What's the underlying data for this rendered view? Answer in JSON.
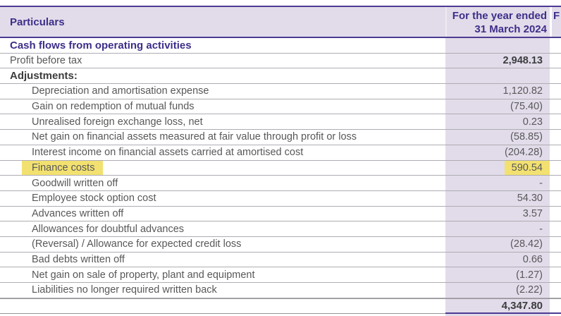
{
  "colors": {
    "lavender": "#e2dcea",
    "purpleText": "#3e2e89",
    "purpleBorder": "#4c3b92",
    "textGray": "#58585a",
    "textDark": "#3c3c3e",
    "rowBorder": "#aeacb2",
    "darkBorder": "#96959a",
    "yellow": "#f2e170"
  },
  "table": {
    "header": {
      "particulars": "Particulars",
      "period_line1": "For the year ended",
      "period_line2": "31 March 2024",
      "next_col_clipped": "F"
    },
    "rows": [
      {
        "label": "Cash flows from operating activities",
        "value": "",
        "style": "section"
      },
      {
        "label": "Profit before tax",
        "value": "2,948.13",
        "style": "plain",
        "value_bold": true
      },
      {
        "label": "Adjustments:",
        "value": "",
        "style": "strong"
      },
      {
        "label": "Depreciation and amortisation expense",
        "value": "1,120.82",
        "style": "indent"
      },
      {
        "label": "Gain on redemption of mutual funds",
        "value": "(75.40)",
        "style": "indent"
      },
      {
        "label": "Unrealised foreign exchange loss, net",
        "value": "0.23",
        "style": "indent"
      },
      {
        "label": "Net gain on financial assets measured at fair value through profit or loss",
        "value": "(58.85)",
        "style": "indent"
      },
      {
        "label": "Interest income on financial assets carried at amortised cost",
        "value": "(204.28)",
        "style": "indent"
      },
      {
        "label": "Finance costs",
        "value": "590.54",
        "style": "indent",
        "highlight": true
      },
      {
        "label": "Goodwill written off",
        "value": "-",
        "style": "indent"
      },
      {
        "label": "Employee stock option cost",
        "value": "54.30",
        "style": "indent"
      },
      {
        "label": "Advances written off",
        "value": "3.57",
        "style": "indent"
      },
      {
        "label": "Allowances for doubtful advances",
        "value": "-",
        "style": "indent"
      },
      {
        "label": "(Reversal) / Allowance for expected credit loss",
        "value": "(28.42)",
        "style": "indent"
      },
      {
        "label": "Bad debts written off",
        "value": "0.66",
        "style": "indent"
      },
      {
        "label": "Net gain on sale of property, plant and equipment",
        "value": "(1.27)",
        "style": "indent"
      },
      {
        "label": "Liabilities no longer required written back",
        "value": "(2.22)",
        "style": "indent"
      },
      {
        "label": "",
        "value": "4,347.80",
        "style": "total"
      }
    ]
  }
}
